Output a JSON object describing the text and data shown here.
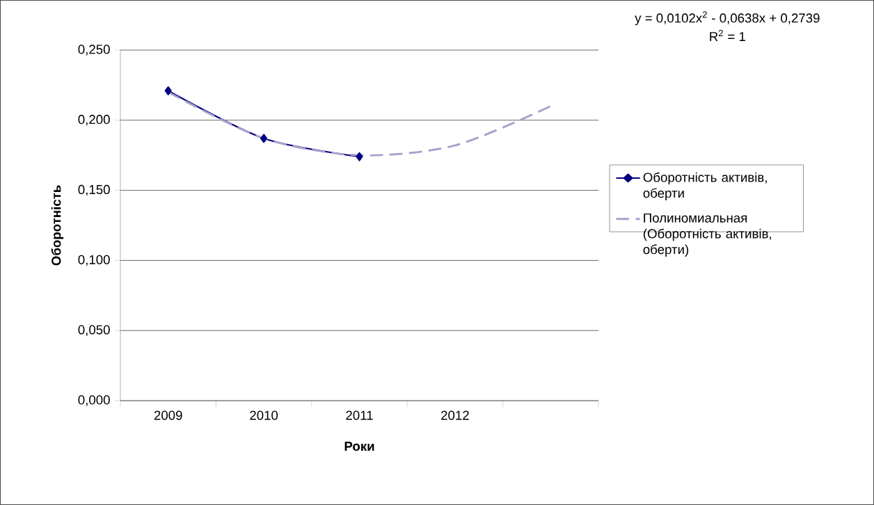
{
  "chart_data": {
    "type": "line",
    "xlabel": "Роки",
    "ylabel": "Оборотність",
    "categories": [
      "2009",
      "2010",
      "2011",
      "2012",
      null
    ],
    "series": [
      {
        "name": "Оборотність активів, оберти",
        "color": "#000080",
        "values": [
          0.221,
          0.187,
          0.174,
          null,
          null
        ],
        "marker": "diamond",
        "line_style": "solid"
      },
      {
        "name": "Полиномиальная (Оборотність активів, оберти)",
        "color": "#a9a0cc",
        "values": [
          0.22,
          0.187,
          0.175,
          0.182,
          0.21
        ],
        "marker": "none",
        "line_style": "dashed"
      }
    ],
    "ylim": [
      0,
      0.25
    ],
    "yticks": [
      {
        "value": 0,
        "label": "0,000"
      },
      {
        "value": 0.05,
        "label": "0,050"
      },
      {
        "value": 0.1,
        "label": "0,100"
      },
      {
        "value": 0.15,
        "label": "0,150"
      },
      {
        "value": 0.2,
        "label": "0,200"
      },
      {
        "value": 0.25,
        "label": "0,250"
      }
    ],
    "grid": "y",
    "legend": "right",
    "annotations": [
      "y = 0,0102x$^{2}$ - 0,0638x + 0,2739",
      "R$^{2}$ = 1"
    ]
  }
}
